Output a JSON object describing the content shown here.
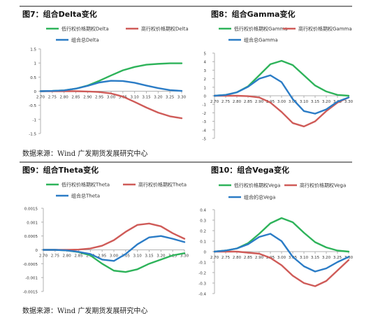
{
  "titles": {
    "fig7": "图7：组合Delta变化",
    "fig8": "图8：组合Gamma变化",
    "fig9": "图9：组合Theta变化",
    "fig10": "图10：组合Vega变化"
  },
  "sources": {
    "top": "数据来源：Wind 广发期货发展研究中心",
    "bottom": "数据来源：Wind 广发期货发展研究中心"
  },
  "colors": {
    "green": "#2eb35a",
    "red": "#cf5b58",
    "blue": "#2b7cc6",
    "axis": "#b0b0b0"
  },
  "chart_data": [
    {
      "id": "delta",
      "type": "line",
      "x": [
        2.7,
        2.75,
        2.8,
        2.85,
        2.9,
        2.95,
        3.0,
        3.05,
        3.1,
        3.15,
        3.2,
        3.25,
        3.3
      ],
      "x_tick_labels": [
        "2.70",
        "2.75",
        "2.80",
        "2.85",
        "2.90",
        "2.95",
        "3.00",
        "3.05",
        "3.10",
        "3.15",
        "3.20",
        "3.25",
        "3.30"
      ],
      "ylim": [
        -1.5,
        1.5
      ],
      "y_ticks": [
        -1.5,
        -1,
        -0.5,
        0,
        0.5,
        1,
        1.5
      ],
      "y_tick_labels": [
        "-1.5",
        "-1",
        "-0.5",
        "0",
        "0.5",
        "1",
        "1.5"
      ],
      "legend_position": "top",
      "series": [
        {
          "name": "低行权价格期权Delta",
          "color": "green",
          "values": [
            0.0,
            0.01,
            0.03,
            0.09,
            0.2,
            0.37,
            0.56,
            0.74,
            0.86,
            0.94,
            0.97,
            0.99,
            0.99
          ]
        },
        {
          "name": "高行权价格期权Delta",
          "color": "red",
          "values": [
            0.0,
            0.0,
            0.0,
            0.0,
            -0.01,
            -0.03,
            -0.08,
            -0.19,
            -0.38,
            -0.58,
            -0.76,
            -0.89,
            -0.96
          ]
        },
        {
          "name": "组合总Delta",
          "color": "blue",
          "values": [
            0.0,
            0.01,
            0.03,
            0.09,
            0.19,
            0.31,
            0.37,
            0.36,
            0.3,
            0.2,
            0.11,
            0.04,
            0.01
          ]
        }
      ]
    },
    {
      "id": "gamma",
      "type": "line",
      "x": [
        2.7,
        2.75,
        2.8,
        2.85,
        2.9,
        2.95,
        3.0,
        3.05,
        3.1,
        3.15,
        3.2,
        3.25,
        3.3
      ],
      "x_tick_labels": [
        "2.70",
        "2.75",
        "2.80",
        "2.85",
        "2.90",
        "2.95",
        "3.00",
        "3.05",
        "3.10",
        "3.15",
        "3.20",
        "3.25",
        "3.30"
      ],
      "ylim": [
        -5,
        5
      ],
      "y_ticks": [
        -5,
        -4,
        -3,
        -2,
        -1,
        0,
        1,
        2,
        3,
        4,
        5
      ],
      "y_tick_labels": [
        "-5",
        "-4",
        "-3",
        "-2",
        "-1",
        "0",
        "1",
        "2",
        "3",
        "4",
        "5"
      ],
      "legend_position": "top",
      "series": [
        {
          "name": "低行权价格期权Gamma",
          "color": "green",
          "values": [
            0.0,
            0.1,
            0.4,
            1.1,
            2.4,
            3.7,
            4.1,
            3.6,
            2.4,
            1.2,
            0.5,
            0.1,
            0.0
          ]
        },
        {
          "name": "高行权价格期权Gamma",
          "color": "red",
          "values": [
            0.0,
            0.0,
            0.0,
            -0.05,
            -0.2,
            -0.8,
            -1.9,
            -3.2,
            -3.6,
            -3.0,
            -1.8,
            -0.8,
            -0.2
          ]
        },
        {
          "name": "组合总Gamma",
          "color": "blue",
          "values": [
            0.0,
            0.1,
            0.4,
            1.05,
            2.0,
            2.4,
            1.6,
            -0.4,
            -1.8,
            -2.1,
            -1.6,
            -0.7,
            -0.2
          ]
        }
      ]
    },
    {
      "id": "theta",
      "type": "line",
      "x": [
        2.7,
        2.75,
        2.8,
        2.85,
        2.9,
        2.95,
        3.0,
        3.05,
        3.1,
        3.15,
        3.2,
        3.25,
        3.3
      ],
      "x_tick_labels": [
        "2.70",
        "2.75",
        "2.80",
        "2.85",
        "2.90",
        "2.95",
        "3.00",
        "3.05",
        "3.10",
        "3.15",
        "3.20",
        "3.25",
        "3.30"
      ],
      "ylim": [
        -0.0015,
        0.0015
      ],
      "y_ticks": [
        -0.0015,
        -0.001,
        -0.0005,
        0,
        0.0005,
        0.001,
        0.0015
      ],
      "y_tick_labels": [
        "-0.0015",
        "-0.001",
        "-0.0005",
        "0",
        "0.0005",
        "0.001",
        "0.0015"
      ],
      "legend_position": "top",
      "series": [
        {
          "name": "低行权价格期权Theta",
          "color": "green",
          "values": [
            0.0,
            0.0,
            -2e-05,
            -8e-05,
            -0.0002,
            -0.0005,
            -0.00075,
            -0.0008,
            -0.0007,
            -0.0005,
            -0.00035,
            -0.0002,
            -0.00012
          ]
        },
        {
          "name": "高行权价格期权Theta",
          "color": "red",
          "values": [
            0.0,
            0.0,
            0.0,
            1e-05,
            5e-05,
            0.00015,
            0.00035,
            0.00065,
            0.0009,
            0.00095,
            0.00085,
            0.0006,
            0.0004
          ]
        },
        {
          "name": "组合总Theta",
          "color": "blue",
          "values": [
            0.0,
            0.0,
            -2e-05,
            -7e-05,
            -0.00015,
            -0.00035,
            -0.0004,
            -0.00015,
            0.0002,
            0.00045,
            0.0005,
            0.0004,
            0.00028
          ]
        }
      ]
    },
    {
      "id": "vega",
      "type": "line",
      "x": [
        2.7,
        2.75,
        2.8,
        2.85,
        2.9,
        2.95,
        3.0,
        3.05,
        3.1,
        3.15,
        3.2,
        3.25,
        3.3
      ],
      "x_tick_labels": [
        "2.70",
        "2.75",
        "2.80",
        "2.85",
        "2.90",
        "2.95",
        "3.00",
        "3.05",
        "3.10",
        "3.15",
        "3.20",
        "3.25",
        "3.30"
      ],
      "ylim": [
        -0.4,
        0.4
      ],
      "y_ticks": [
        -0.4,
        -0.3,
        -0.2,
        -0.1,
        0,
        0.1,
        0.2,
        0.3,
        0.4
      ],
      "y_tick_labels": [
        "-0.4",
        "-0.3",
        "-0.2",
        "-0.1",
        "0",
        "0.1",
        "0.2",
        "0.3",
        "0.4"
      ],
      "legend_position": "top",
      "series": [
        {
          "name": "低行权价格期权Vega",
          "color": "green",
          "values": [
            0.0,
            0.01,
            0.03,
            0.08,
            0.17,
            0.27,
            0.32,
            0.28,
            0.18,
            0.09,
            0.04,
            0.01,
            0.0
          ]
        },
        {
          "name": "高行权价格期权Vega",
          "color": "red",
          "values": [
            0.0,
            0.0,
            0.0,
            -0.01,
            -0.02,
            -0.06,
            -0.13,
            -0.23,
            -0.3,
            -0.33,
            -0.28,
            -0.18,
            -0.08
          ]
        },
        {
          "name": "组合的总Vega",
          "color": "blue",
          "values": [
            0.0,
            0.01,
            0.03,
            0.07,
            0.14,
            0.17,
            0.1,
            -0.05,
            -0.14,
            -0.19,
            -0.16,
            -0.1,
            -0.05
          ]
        }
      ]
    }
  ]
}
